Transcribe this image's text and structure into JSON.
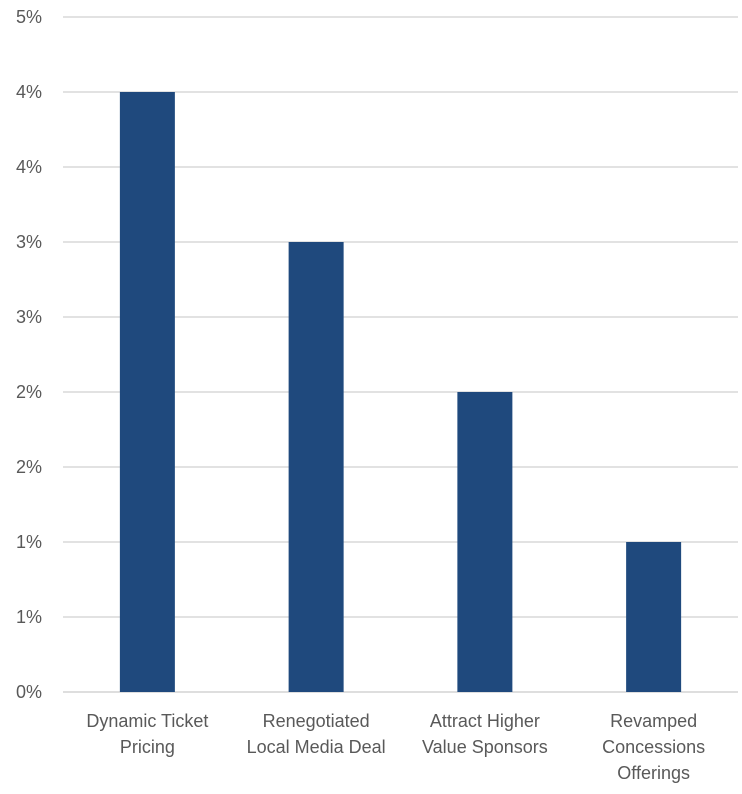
{
  "chart_data": {
    "type": "bar",
    "title": "",
    "xlabel": "",
    "ylabel": "",
    "categories": [
      [
        "Dynamic Ticket",
        "Pricing"
      ],
      [
        "Renegotiated",
        "Local Media Deal"
      ],
      [
        "Attract Higher",
        "Value Sponsors"
      ],
      [
        "Revamped",
        "Concessions",
        "Offerings"
      ]
    ],
    "values": [
      4.0,
      3.0,
      2.0,
      1.0
    ],
    "ylim": [
      0,
      4.5
    ],
    "yticks": [
      0,
      0.5,
      1.0,
      1.5,
      2.0,
      2.5,
      3.0,
      3.5,
      4.0,
      4.5
    ],
    "ytick_labels": [
      "0%",
      "1%",
      "1%",
      "2%",
      "2%",
      "3%",
      "3%",
      "4%",
      "4%",
      "5%"
    ],
    "grid": true,
    "legend": "none",
    "colors": {
      "bar": "#1F497D",
      "grid": "#D9D9D9",
      "text": "#595959"
    }
  }
}
